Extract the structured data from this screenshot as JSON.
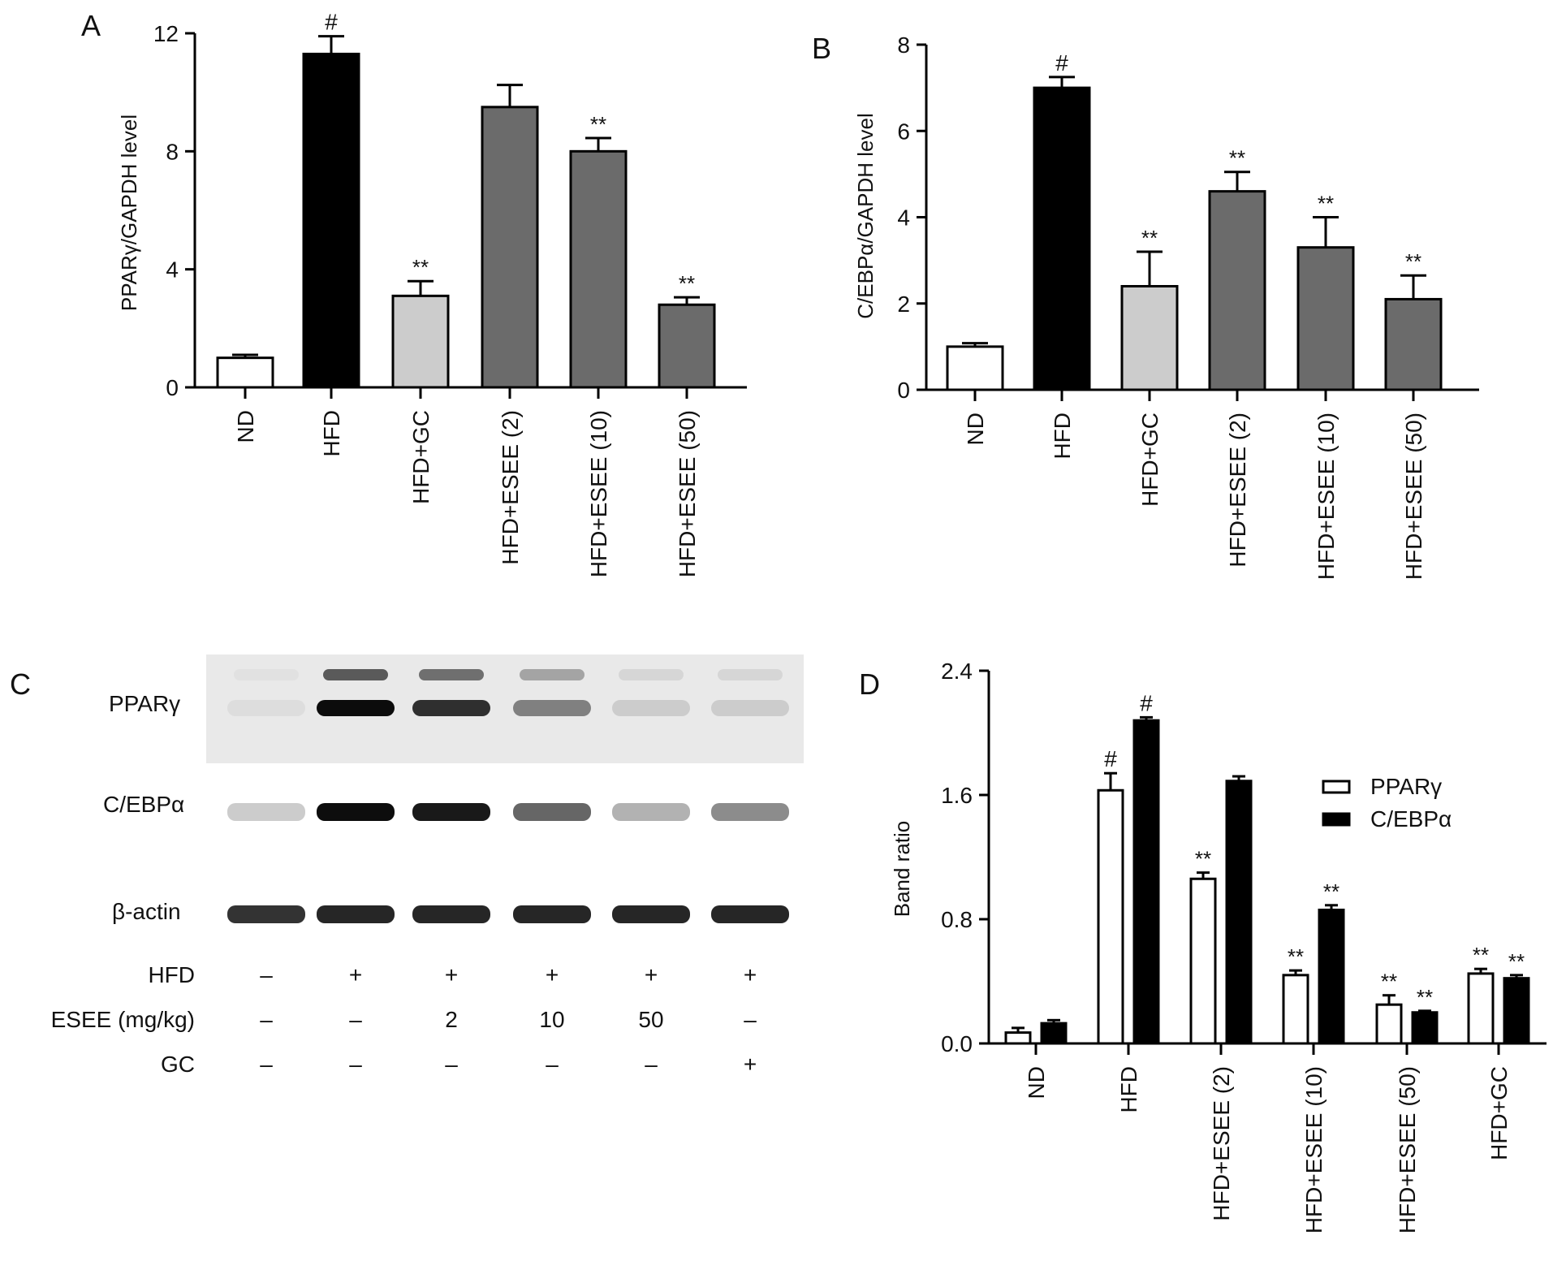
{
  "colors": {
    "white": "#ffffff",
    "black": "#000000",
    "light_gray": "#cccccc",
    "dark_gray": "#6b6b6b"
  },
  "panels": {
    "a": "A",
    "b": "B",
    "c": "C",
    "d": "D"
  },
  "chart_data": [
    {
      "id": "A",
      "type": "bar",
      "ylabel": "PPARγ/GAPDH level",
      "ylim": [
        0,
        12
      ],
      "yticks": [
        "0",
        "4",
        "8",
        "12"
      ],
      "categories": [
        "ND",
        "HFD",
        "HFD+GC",
        "HFD+ESEE (2)",
        "HFD+ESEE (10)",
        "HFD+ESEE (50)"
      ],
      "values": [
        1.0,
        11.3,
        3.1,
        9.5,
        8.0,
        2.8
      ],
      "errors": [
        0.1,
        0.6,
        0.5,
        0.75,
        0.45,
        0.25
      ],
      "annotations": [
        "",
        "#",
        "**",
        "",
        "**",
        "**"
      ],
      "fills": [
        "white",
        "black",
        "light_gray",
        "dark_gray",
        "dark_gray",
        "dark_gray"
      ]
    },
    {
      "id": "B",
      "type": "bar",
      "ylabel": "C/EBPα/GAPDH level",
      "ylim": [
        0,
        8
      ],
      "yticks": [
        "0",
        "2",
        "4",
        "6",
        "8"
      ],
      "categories": [
        "ND",
        "HFD",
        "HFD+GC",
        "HFD+ESEE (2)",
        "HFD+ESEE (10)",
        "HFD+ESEE (50)"
      ],
      "values": [
        1.0,
        7.0,
        2.4,
        4.6,
        3.3,
        2.1
      ],
      "errors": [
        0.08,
        0.25,
        0.8,
        0.45,
        0.7,
        0.55
      ],
      "annotations": [
        "",
        "#",
        "**",
        "**",
        "**",
        "**"
      ],
      "fills": [
        "white",
        "black",
        "light_gray",
        "dark_gray",
        "dark_gray",
        "dark_gray"
      ]
    },
    {
      "id": "D",
      "type": "bar",
      "ylabel": "Band ratio",
      "ylim": [
        0,
        2.4
      ],
      "yticks": [
        "0.0",
        "0.8",
        "1.6",
        "2.4"
      ],
      "categories": [
        "ND",
        "HFD",
        "HFD+ESEE (2)",
        "HFD+ESEE (10)",
        "HFD+ESEE (50)",
        "HFD+GC"
      ],
      "legend_position": "right",
      "series": [
        {
          "name": "PPARγ",
          "fill": "white",
          "values": [
            0.07,
            1.63,
            1.06,
            0.44,
            0.25,
            0.45
          ],
          "errors": [
            0.03,
            0.11,
            0.04,
            0.03,
            0.06,
            0.03
          ],
          "annotations": [
            "",
            "#",
            "**",
            "**",
            "**",
            "**"
          ]
        },
        {
          "name": "C/EBPα",
          "fill": "black",
          "values": [
            0.13,
            2.08,
            1.69,
            0.86,
            0.2,
            0.42
          ],
          "errors": [
            0.02,
            0.02,
            0.03,
            0.03,
            0.01,
            0.02
          ],
          "annotations": [
            "",
            "#",
            "",
            "**",
            "**",
            "**"
          ]
        }
      ]
    }
  ],
  "western_blot": {
    "proteins": [
      "PPARγ",
      "C/EBPα",
      "β-actin"
    ],
    "lanes": 6,
    "band_intensity": {
      "PPARγ": [
        0.05,
        0.95,
        0.8,
        0.45,
        0.12,
        0.12
      ],
      "C/EBPα": [
        0.2,
        0.95,
        0.9,
        0.6,
        0.3,
        0.45
      ],
      "β-actin": [
        0.8,
        0.85,
        0.85,
        0.85,
        0.85,
        0.85
      ]
    },
    "conditions": [
      {
        "label": "HFD",
        "values": [
          "–",
          "+",
          "+",
          "+",
          "+",
          "+"
        ]
      },
      {
        "label": "ESEE (mg/kg)",
        "values": [
          "–",
          "–",
          "2",
          "10",
          "50",
          "–"
        ]
      },
      {
        "label": "GC",
        "values": [
          "–",
          "–",
          "–",
          "–",
          "–",
          "+"
        ]
      }
    ]
  }
}
